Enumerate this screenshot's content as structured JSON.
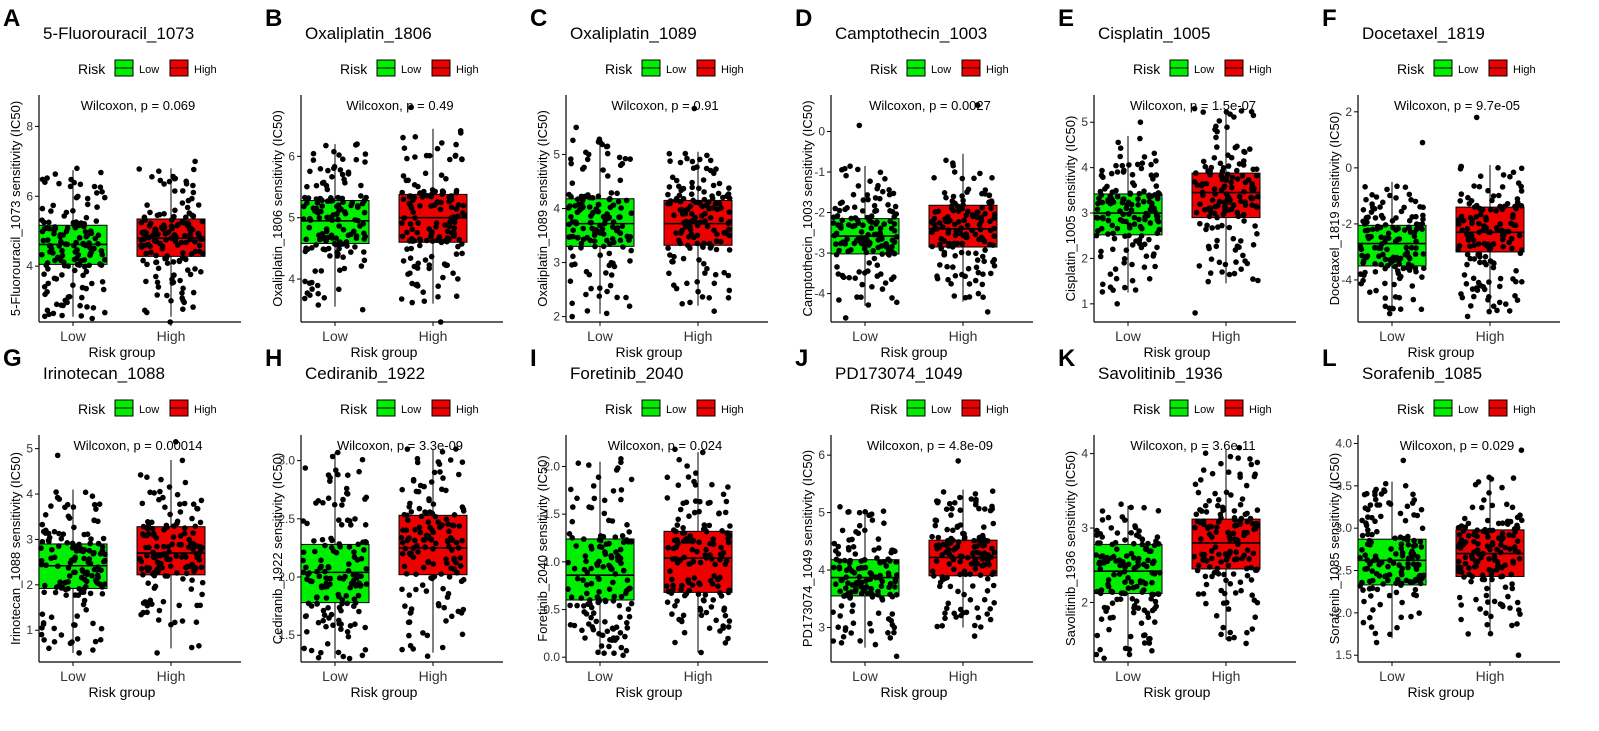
{
  "legend": {
    "title": "Risk",
    "low_label": "Low",
    "high_label": "High"
  },
  "colors": {
    "low": "#00ee00",
    "high": "#ee0000",
    "point": "#000000",
    "axis": "#000000"
  },
  "chart_data": [
    {
      "letter": "A",
      "type": "box",
      "title": "5-Fluorouracil_1073",
      "ylabel": "5-Fluorouracil_1073 sensitivity (IC50)",
      "xlabel": "Risk group",
      "categories": [
        "Low",
        "High"
      ],
      "ylim": [
        2.4,
        8.9
      ],
      "yticks": [
        4,
        6,
        8
      ],
      "tick_labels": [
        "4",
        "6",
        "8"
      ],
      "stat_label": "Wilcoxon, p = 0.069",
      "series": [
        {
          "name": "Low",
          "q1": 4.05,
          "median": 4.62,
          "q3": 5.17,
          "whisker_low": 2.55,
          "whisker_high": 6.75,
          "points_min": 2.5,
          "points_max": 6.8
        },
        {
          "name": "High",
          "q1": 4.28,
          "median": 4.8,
          "q3": 5.35,
          "whisker_low": 2.55,
          "whisker_high": 6.8,
          "points_min": 2.4,
          "points_max": 7.0
        }
      ]
    },
    {
      "letter": "B",
      "type": "box",
      "title": "Oxaliplatin_1806",
      "ylabel": "Oxaliplatin_1806 sensitivity (IC50)",
      "xlabel": "Risk group",
      "categories": [
        "Low",
        "High"
      ],
      "ylim": [
        3.3,
        7.0
      ],
      "yticks": [
        4,
        5,
        6
      ],
      "tick_labels": [
        "4",
        "5",
        "6"
      ],
      "stat_label": "Wilcoxon, p = 0.49",
      "series": [
        {
          "name": "Low",
          "q1": 4.58,
          "median": 4.95,
          "q3": 5.28,
          "whisker_low": 3.55,
          "whisker_high": 6.2,
          "points_min": 3.5,
          "points_max": 6.2
        },
        {
          "name": "High",
          "q1": 4.6,
          "median": 5.0,
          "q3": 5.38,
          "whisker_low": 3.6,
          "whisker_high": 6.45,
          "points_min": 3.3,
          "points_max": 6.8
        }
      ]
    },
    {
      "letter": "C",
      "type": "box",
      "title": "Oxaliplatin_1089",
      "ylabel": "Oxaliplatin_1089 sensitivity (IC50)",
      "xlabel": "Risk group",
      "categories": [
        "Low",
        "High"
      ],
      "ylim": [
        1.9,
        6.1
      ],
      "yticks": [
        2,
        3,
        4,
        5
      ],
      "tick_labels": [
        "2",
        "3",
        "4",
        "5"
      ],
      "stat_label": "Wilcoxon, p = 0.91",
      "series": [
        {
          "name": "Low",
          "q1": 3.3,
          "median": 3.72,
          "q3": 4.18,
          "whisker_low": 2.05,
          "whisker_high": 5.3,
          "points_min": 2.0,
          "points_max": 5.5
        },
        {
          "name": "High",
          "q1": 3.32,
          "median": 3.72,
          "q3": 4.15,
          "whisker_low": 2.2,
          "whisker_high": 5.05,
          "points_min": 2.1,
          "points_max": 5.85
        }
      ]
    },
    {
      "letter": "D",
      "type": "box",
      "title": "Camptothecin_1003",
      "ylabel": "Camptothecin_1003 sensitivity (IC50)",
      "xlabel": "Risk group",
      "categories": [
        "Low",
        "High"
      ],
      "ylim": [
        -4.7,
        0.9
      ],
      "yticks": [
        -4,
        -3,
        -2,
        -1,
        0
      ],
      "tick_labels": [
        "-4",
        "-3",
        "-2",
        "-1",
        "0"
      ],
      "stat_label": "Wilcoxon, p = 0.0027",
      "series": [
        {
          "name": "Low",
          "q1": -3.02,
          "median": -2.58,
          "q3": -2.15,
          "whisker_low": -4.3,
          "whisker_high": -0.85,
          "points_min": -4.6,
          "points_max": 0.15
        },
        {
          "name": "High",
          "q1": -2.85,
          "median": -2.4,
          "q3": -1.82,
          "whisker_low": -4.2,
          "whisker_high": -0.55,
          "points_min": -4.45,
          "points_max": 0.65
        }
      ]
    },
    {
      "letter": "E",
      "type": "box",
      "title": "Cisplatin_1005",
      "ylabel": "Cisplatin_1005 sensitivity (IC50)",
      "xlabel": "Risk group",
      "categories": [
        "Low",
        "High"
      ],
      "ylim": [
        0.6,
        5.6
      ],
      "yticks": [
        1,
        2,
        3,
        4,
        5
      ],
      "tick_labels": [
        "1",
        "2",
        "3",
        "4",
        "5"
      ],
      "stat_label": "Wilcoxon, p = 1.5e-07",
      "series": [
        {
          "name": "Low",
          "q1": 2.52,
          "median": 3.0,
          "q3": 3.42,
          "whisker_low": 1.25,
          "whisker_high": 4.7,
          "points_min": 1.0,
          "points_max": 5.0
        },
        {
          "name": "High",
          "q1": 2.9,
          "median": 3.45,
          "q3": 3.88,
          "whisker_low": 1.45,
          "whisker_high": 5.25,
          "points_min": 0.8,
          "points_max": 5.3
        }
      ]
    },
    {
      "letter": "F",
      "type": "box",
      "title": "Docetaxel_1819",
      "ylabel": "Docetaxel_1819 sensitivity (IC50)",
      "xlabel": "Risk group",
      "categories": [
        "Low",
        "High"
      ],
      "ylim": [
        -5.5,
        2.6
      ],
      "yticks": [
        -4,
        -2,
        0,
        2
      ],
      "tick_labels": [
        "-4",
        "-2",
        "0",
        "2"
      ],
      "stat_label": "Wilcoxon, p = 9.7e-05",
      "series": [
        {
          "name": "Low",
          "q1": -3.5,
          "median": -2.7,
          "q3": -2.05,
          "whisker_low": -5.1,
          "whisker_high": -0.5,
          "points_min": -5.2,
          "points_max": 0.9
        },
        {
          "name": "High",
          "q1": -3.0,
          "median": -2.3,
          "q3": -1.4,
          "whisker_low": -5.2,
          "whisker_high": 0.1,
          "points_min": -5.3,
          "points_max": 1.8
        }
      ]
    },
    {
      "letter": "G",
      "type": "box",
      "title": "Irinotecan_1088",
      "ylabel": "Irinotecan_1088 sensitivity (IC50)",
      "xlabel": "Risk group",
      "categories": [
        "Low",
        "High"
      ],
      "ylim": [
        0.3,
        5.3
      ],
      "yticks": [
        1,
        2,
        3,
        4,
        5
      ],
      "tick_labels": [
        "1",
        "2",
        "3",
        "4",
        "5"
      ],
      "stat_label": "Wilcoxon, p = 0.00014",
      "series": [
        {
          "name": "Low",
          "q1": 1.92,
          "median": 2.42,
          "q3": 2.9,
          "whisker_low": 0.5,
          "whisker_high": 4.1,
          "points_min": 0.5,
          "points_max": 4.85
        },
        {
          "name": "High",
          "q1": 2.22,
          "median": 2.7,
          "q3": 3.28,
          "whisker_low": 0.6,
          "whisker_high": 4.75,
          "points_min": 0.5,
          "points_max": 5.15
        }
      ]
    },
    {
      "letter": "H",
      "type": "box",
      "title": "Cediranib_1922",
      "ylabel": "Cediranib_1922 sensitivity (IC50)",
      "xlabel": "Risk group",
      "categories": [
        "Low",
        "High"
      ],
      "ylim": [
        1.27,
        3.22
      ],
      "yticks": [
        1.5,
        2.0,
        2.5,
        3.0
      ],
      "tick_labels": [
        "1.5",
        "2.0",
        "2.5",
        "3.0"
      ],
      "stat_label": "Wilcoxon, p = 3.3e-09",
      "series": [
        {
          "name": "Low",
          "q1": 1.78,
          "median": 2.04,
          "q3": 2.28,
          "whisker_low": 1.3,
          "whisker_high": 3.07,
          "points_min": 1.3,
          "points_max": 3.07
        },
        {
          "name": "High",
          "q1": 2.02,
          "median": 2.25,
          "q3": 2.53,
          "whisker_low": 1.35,
          "whisker_high": 3.1,
          "points_min": 1.32,
          "points_max": 3.1
        }
      ]
    },
    {
      "letter": "I",
      "type": "box",
      "title": "Foretinib_2040",
      "ylabel": "Foretinib_2040 sensitivity (IC50)",
      "xlabel": "Risk group",
      "categories": [
        "Low",
        "High"
      ],
      "ylim": [
        -0.05,
        2.33
      ],
      "yticks": [
        0.0,
        0.5,
        1.0,
        1.5,
        2.0
      ],
      "tick_labels": [
        "0.0",
        "0.5",
        "1.0",
        "1.5",
        "2.0"
      ],
      "stat_label": "Wilcoxon, p = 0.024",
      "series": [
        {
          "name": "Low",
          "q1": 0.6,
          "median": 0.86,
          "q3": 1.24,
          "whisker_low": 0.03,
          "whisker_high": 2.05,
          "points_min": 0.02,
          "points_max": 2.08
        },
        {
          "name": "High",
          "q1": 0.68,
          "median": 1.04,
          "q3": 1.32,
          "whisker_low": 0.05,
          "whisker_high": 2.15,
          "points_min": 0.05,
          "points_max": 2.18
        }
      ]
    },
    {
      "letter": "J",
      "type": "box",
      "title": "PD173074_1049",
      "ylabel": "PD173074_1049 sensitivity (IC50)",
      "xlabel": "Risk group",
      "categories": [
        "Low",
        "High"
      ],
      "ylim": [
        2.4,
        6.35
      ],
      "yticks": [
        3,
        4,
        5,
        6
      ],
      "tick_labels": [
        "3",
        "4",
        "5",
        "6"
      ],
      "stat_label": "Wilcoxon, p = 4.8e-09",
      "series": [
        {
          "name": "Low",
          "q1": 3.55,
          "median": 3.87,
          "q3": 4.18,
          "whisker_low": 2.65,
          "whisker_high": 5.05,
          "points_min": 2.5,
          "points_max": 5.1
        },
        {
          "name": "High",
          "q1": 3.9,
          "median": 4.22,
          "q3": 4.52,
          "whisker_low": 3.0,
          "whisker_high": 5.4,
          "points_min": 2.85,
          "points_max": 5.9
        }
      ]
    },
    {
      "letter": "K",
      "type": "box",
      "title": "Savolitinib_1936",
      "ylabel": "Savolitinib_1936 sensitivity (IC50)",
      "xlabel": "Risk group",
      "categories": [
        "Low",
        "High"
      ],
      "ylim": [
        1.2,
        4.25
      ],
      "yticks": [
        2,
        3,
        4
      ],
      "tick_labels": [
        "2",
        "3",
        "4"
      ],
      "stat_label": "Wilcoxon, p = 3.6e-11",
      "series": [
        {
          "name": "Low",
          "q1": 2.12,
          "median": 2.42,
          "q3": 2.78,
          "whisker_low": 1.3,
          "whisker_high": 3.3,
          "points_min": 1.25,
          "points_max": 3.32
        },
        {
          "name": "High",
          "q1": 2.45,
          "median": 2.8,
          "q3": 3.12,
          "whisker_low": 1.5,
          "whisker_high": 4.05,
          "points_min": 1.45,
          "points_max": 4.08
        }
      ]
    },
    {
      "letter": "L",
      "type": "box",
      "title": "Sorafenib_1085",
      "ylabel": "Sorafenib_1085 sensitivity (IC50)",
      "xlabel": "Risk group",
      "categories": [
        "Low",
        "High"
      ],
      "ylim": [
        1.42,
        4.1
      ],
      "yticks": [
        1.5,
        2.0,
        2.5,
        3.0,
        3.5,
        4.0
      ],
      "tick_labels": [
        "1.5",
        "2.0",
        "2.5",
        "3.0",
        "3.5",
        "4.0"
      ],
      "stat_label": "Wilcoxon, p = 0.029",
      "series": [
        {
          "name": "Low",
          "q1": 2.33,
          "median": 2.62,
          "q3": 2.87,
          "whisker_low": 1.7,
          "whisker_high": 3.55,
          "points_min": 1.65,
          "points_max": 3.8
        },
        {
          "name": "High",
          "q1": 2.43,
          "median": 2.7,
          "q3": 2.98,
          "whisker_low": 1.75,
          "whisker_high": 3.62,
          "points_min": 1.5,
          "points_max": 3.92
        }
      ]
    }
  ]
}
